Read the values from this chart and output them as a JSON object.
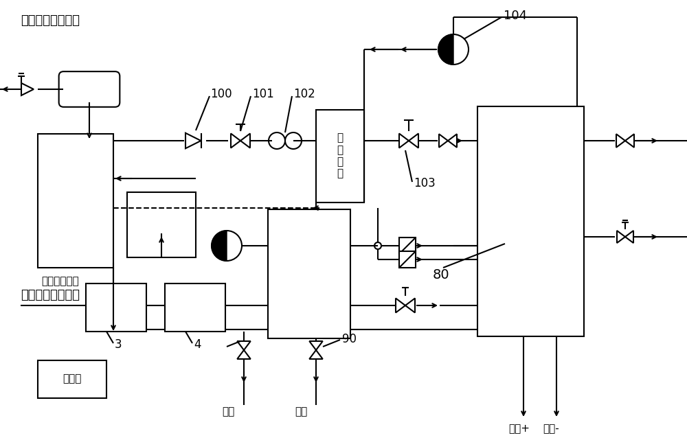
{
  "bg_color": "#ffffff",
  "lc": "#000000",
  "tc": "#000000",
  "title_anode": "阳极进气（氢气）",
  "title_cathode": "阴极进气（空气）",
  "cooling_label": "冷却控制系统",
  "controller_label": "控制器",
  "humidifier_label": "增\n湿\n加\n热",
  "cell_label": "80",
  "n100": "100",
  "n101": "101",
  "n102": "102",
  "n103": "103",
  "n104": "104",
  "n3": "3",
  "n4": "4",
  "n90": "90",
  "dplus": "发电+",
  "dminus": "发电-",
  "vent": "排空",
  "drain": "排水"
}
